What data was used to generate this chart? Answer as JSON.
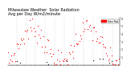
{
  "title": "Milwaukee Weather  Solar Radiation\nAvg per Day W/m2/minute",
  "title_fontsize": 3.5,
  "background_color": "#ffffff",
  "plot_bg_color": "#ffffff",
  "grid_color": "#bbbbbb",
  "dot_color_red": "#ff0000",
  "dot_color_black": "#000000",
  "legend_color": "#ff0000",
  "legend_label": "Solar Rad",
  "ylim": [
    0,
    600
  ],
  "yticks": [
    100,
    200,
    300,
    400,
    500,
    600
  ],
  "ytick_labels": [
    "1",
    "2",
    "3",
    "4",
    "5",
    "6"
  ],
  "n_points": 105,
  "seed": 7
}
